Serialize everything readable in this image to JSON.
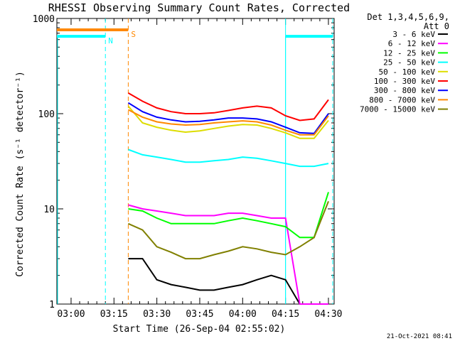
{
  "chart_data": {
    "type": "line",
    "title": "RHESSI Observing Summary Count Rates, Corrected",
    "xlabel": "Start Time (26-Sep-04 02:55:02)",
    "ylabel": "Corrected Count Rate (s⁻¹ detector⁻¹)",
    "y_scale": "log",
    "ylim": [
      1,
      1000
    ],
    "xlim": [
      "02:55:02",
      "04:32:00"
    ],
    "x_ticks": [
      "03:00",
      "03:15",
      "03:30",
      "03:45",
      "04:00",
      "04:15",
      "04:30"
    ],
    "y_ticks": [
      "1",
      "10",
      "100",
      "1000"
    ],
    "detectors": "Det 1,3,4,5,6,9,",
    "attenuator": "Att 0",
    "footer_date": "21-Oct-2021 08:41",
    "markers": [
      {
        "label": "N",
        "start": "02:55:02",
        "end": "03:12:00",
        "level": 650,
        "color": "#00ffff"
      },
      {
        "label": "S",
        "start": "02:55:02",
        "end": "03:20:00",
        "level": 760,
        "color": "#ff8800"
      },
      {
        "label": "",
        "start": "04:15:00",
        "end": "04:31:30",
        "level": 650,
        "color": "#00ffff"
      }
    ],
    "vlines": [
      {
        "time": "03:12:00",
        "color": "#00ffff",
        "dash": true
      },
      {
        "time": "03:20:00",
        "color": "#ff8800",
        "dash": true
      },
      {
        "time": "04:15:00",
        "color": "#00ffff",
        "dash": false
      },
      {
        "time": "04:31:30",
        "color": "#00ffff",
        "dash": true
      }
    ],
    "x": [
      "03:20",
      "03:25",
      "03:30",
      "03:35",
      "03:40",
      "03:45",
      "03:50",
      "03:55",
      "04:00",
      "04:05",
      "04:10",
      "04:15",
      "04:20",
      "04:25",
      "04:30"
    ],
    "series": [
      {
        "name": "3 - 6 keV",
        "color": "#000000",
        "values": [
          3,
          3,
          1.8,
          1.6,
          1.5,
          1.4,
          1.4,
          1.5,
          1.6,
          1.8,
          2,
          1.8,
          1,
          1,
          1
        ]
      },
      {
        "name": "6 - 12 keV",
        "color": "#ff00ff",
        "values": [
          11,
          10,
          9.5,
          9,
          8.5,
          8.5,
          8.5,
          9,
          9,
          8.5,
          8,
          8,
          1,
          1,
          1
        ]
      },
      {
        "name": "12 - 25 keV",
        "color": "#00ff00",
        "values": [
          10,
          9.5,
          8,
          7,
          7,
          7,
          7,
          7.5,
          8,
          7.5,
          7,
          6.5,
          5,
          5,
          15
        ]
      },
      {
        "name": "25 - 50 keV",
        "color": "#00ffff",
        "values": [
          42,
          37,
          35,
          33,
          31,
          31,
          32,
          33,
          35,
          34,
          32,
          30,
          28,
          28,
          30
        ]
      },
      {
        "name": "50 - 100 keV",
        "color": "#dddd00",
        "values": [
          120,
          80,
          72,
          67,
          64,
          66,
          70,
          74,
          77,
          76,
          70,
          63,
          55,
          55,
          85
        ]
      },
      {
        "name": "100 - 300 keV",
        "color": "#ff0000",
        "values": [
          165,
          135,
          115,
          105,
          100,
          100,
          102,
          108,
          115,
          120,
          115,
          95,
          85,
          88,
          140
        ]
      },
      {
        "name": "300 - 800 keV",
        "color": "#0000ff",
        "values": [
          130,
          105,
          92,
          86,
          82,
          83,
          86,
          90,
          90,
          88,
          82,
          72,
          63,
          62,
          100
        ]
      },
      {
        "name": "800 - 7000 keV",
        "color": "#ff8800",
        "values": [
          110,
          92,
          82,
          78,
          76,
          77,
          80,
          82,
          84,
          82,
          76,
          67,
          60,
          60,
          95
        ]
      },
      {
        "name": "7000 - 15000 keV",
        "color": "#808000",
        "values": [
          7,
          6,
          4,
          3.5,
          3,
          3,
          3.3,
          3.6,
          4,
          3.8,
          3.5,
          3.3,
          4,
          5,
          12
        ]
      }
    ]
  }
}
